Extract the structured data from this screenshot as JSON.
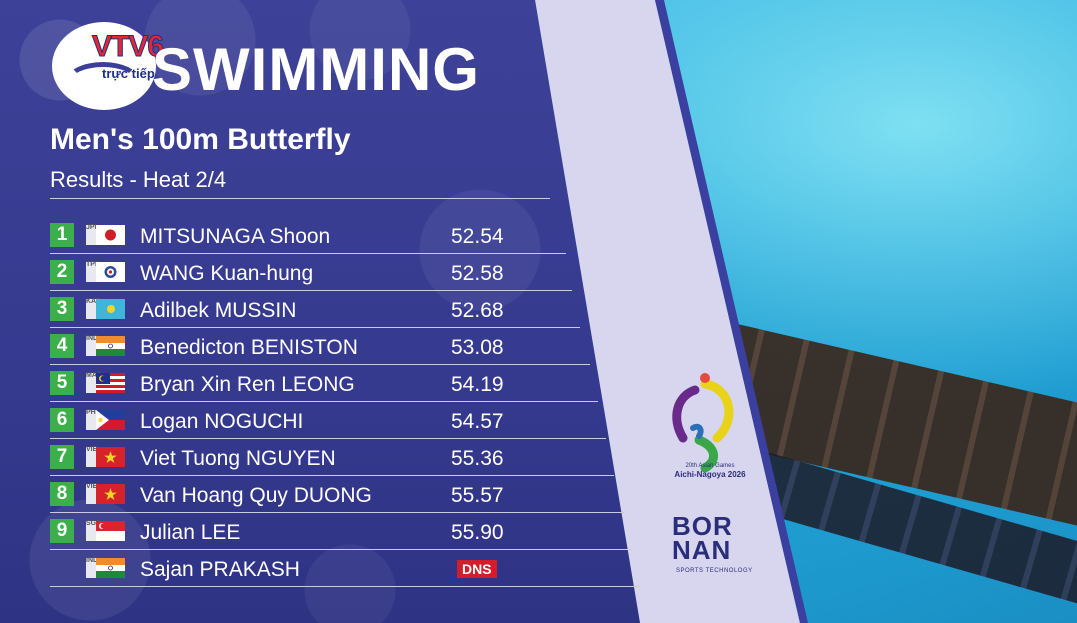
{
  "broadcaster": {
    "logo_text": "VTV6",
    "logo_sub": "trực tiếp"
  },
  "header": {
    "sport": "SWIMMING",
    "event": "Men's 100m Butterfly",
    "subtitle": "Results - Heat 2/4"
  },
  "results": [
    {
      "rank": "1",
      "noc": "JPN",
      "flag": "japan-flag",
      "name": "MITSUNAGA Shoon",
      "time": "52.54"
    },
    {
      "rank": "2",
      "noc": "TPE",
      "flag": "chinese-taipei-flag",
      "name": "WANG Kuan-hung",
      "time": "52.58"
    },
    {
      "rank": "3",
      "noc": "KAZ",
      "flag": "kazakhstan-flag",
      "name": "Adilbek MUSSIN",
      "time": "52.68"
    },
    {
      "rank": "4",
      "noc": "IND",
      "flag": "india-flag",
      "name": "Benedicton BENISTON",
      "time": "53.08"
    },
    {
      "rank": "5",
      "noc": "MAS",
      "flag": "malaysia-flag",
      "name": "Bryan Xin Ren LEONG",
      "time": "54.19"
    },
    {
      "rank": "6",
      "noc": "PHI",
      "flag": "philippines-flag",
      "name": "Logan NOGUCHI",
      "time": "54.57"
    },
    {
      "rank": "7",
      "noc": "VIE",
      "flag": "vietnam-flag",
      "name": "Viet Tuong NGUYEN",
      "time": "55.36"
    },
    {
      "rank": "8",
      "noc": "VIE",
      "flag": "vietnam-flag",
      "name": "Van Hoang Quy DUONG",
      "time": "55.57"
    },
    {
      "rank": "9",
      "noc": "SGP",
      "flag": "singapore-flag",
      "name": "Julian LEE",
      "time": "55.90"
    },
    {
      "rank": "",
      "noc": "IND",
      "flag": "india-flag",
      "name": "Sajan PRAKASH",
      "status": "DNS"
    }
  ],
  "sponsor": {
    "games_line1": "20th Asian Games",
    "games_line2": "Aichi-Nagoya 2026",
    "timing_brand_l1": "BOR",
    "timing_brand_l2": "NAN",
    "timing_sub": "SPORTS TECHNOLOGY"
  },
  "colors": {
    "panel": "#3b3f97",
    "rank_badge": "#3bb04a",
    "dns_badge": "#d11e2a",
    "stripe": "#d7d6ee"
  }
}
